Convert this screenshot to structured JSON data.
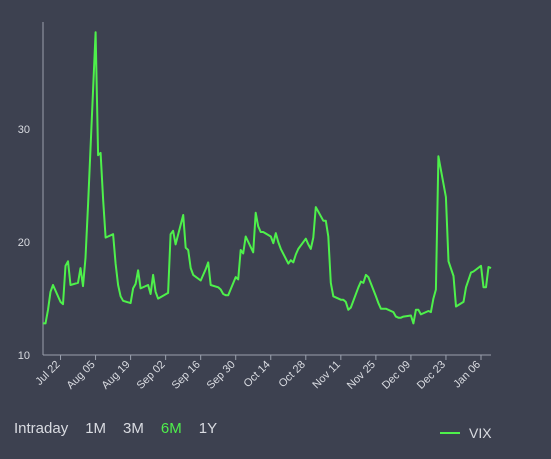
{
  "colors": {
    "background": "#3d4150",
    "line": "#4ef04b",
    "axis": "#9aa0ad",
    "text": "#d9dbe1",
    "active": "#4ef04b"
  },
  "range_buttons": [
    {
      "label": "Intraday",
      "active": false
    },
    {
      "label": "1M",
      "active": false
    },
    {
      "label": "3M",
      "active": false
    },
    {
      "label": "6M",
      "active": true
    },
    {
      "label": "1Y",
      "active": false
    }
  ],
  "chart_data": {
    "type": "line",
    "title": "",
    "xlabel": "",
    "ylabel": "",
    "ylim": [
      10,
      39.5
    ],
    "xlim": [
      "2024-07-15",
      "2025-01-10"
    ],
    "yticks": [
      10,
      20,
      30
    ],
    "xticks": [
      {
        "label": "Jul 22",
        "date": "2024-07-22"
      },
      {
        "label": "Aug 05",
        "date": "2024-08-05"
      },
      {
        "label": "Aug 19",
        "date": "2024-08-19"
      },
      {
        "label": "Sep 02",
        "date": "2024-09-02"
      },
      {
        "label": "Sep 16",
        "date": "2024-09-16"
      },
      {
        "label": "Sep 30",
        "date": "2024-09-30"
      },
      {
        "label": "Oct 14",
        "date": "2024-10-14"
      },
      {
        "label": "Oct 28",
        "date": "2024-10-28"
      },
      {
        "label": "Nov 11",
        "date": "2024-11-11"
      },
      {
        "label": "Nov 25",
        "date": "2024-11-25"
      },
      {
        "label": "Dec 09",
        "date": "2024-12-09"
      },
      {
        "label": "Dec 23",
        "date": "2024-12-23"
      },
      {
        "label": "Jan 06",
        "date": "2025-01-06"
      }
    ],
    "grid": false,
    "legend": "bottom-right",
    "series": [
      {
        "name": "VIX",
        "points": [
          [
            "2024-07-15",
            12.8
          ],
          [
            "2024-07-16",
            12.8
          ],
          [
            "2024-07-17",
            14.0
          ],
          [
            "2024-07-18",
            15.6
          ],
          [
            "2024-07-19",
            16.2
          ],
          [
            "2024-07-22",
            14.7
          ],
          [
            "2024-07-23",
            14.5
          ],
          [
            "2024-07-24",
            17.9
          ],
          [
            "2024-07-25",
            18.3
          ],
          [
            "2024-07-26",
            16.2
          ],
          [
            "2024-07-29",
            16.4
          ],
          [
            "2024-07-30",
            17.7
          ],
          [
            "2024-07-31",
            16.1
          ],
          [
            "2024-08-01",
            18.6
          ],
          [
            "2024-08-02",
            23.4
          ],
          [
            "2024-08-05",
            38.6
          ],
          [
            "2024-08-06",
            27.7
          ],
          [
            "2024-08-07",
            27.9
          ],
          [
            "2024-08-08",
            23.8
          ],
          [
            "2024-08-09",
            20.4
          ],
          [
            "2024-08-12",
            20.7
          ],
          [
            "2024-08-13",
            18.1
          ],
          [
            "2024-08-14",
            16.2
          ],
          [
            "2024-08-15",
            15.2
          ],
          [
            "2024-08-16",
            14.8
          ],
          [
            "2024-08-19",
            14.6
          ],
          [
            "2024-08-20",
            15.9
          ],
          [
            "2024-08-21",
            16.3
          ],
          [
            "2024-08-22",
            17.5
          ],
          [
            "2024-08-23",
            15.9
          ],
          [
            "2024-08-26",
            16.2
          ],
          [
            "2024-08-27",
            15.4
          ],
          [
            "2024-08-28",
            17.1
          ],
          [
            "2024-08-29",
            15.6
          ],
          [
            "2024-08-30",
            15.0
          ],
          [
            "2024-09-03",
            15.5
          ],
          [
            "2024-09-04",
            20.7
          ],
          [
            "2024-09-05",
            21.0
          ],
          [
            "2024-09-06",
            19.8
          ],
          [
            "2024-09-09",
            22.4
          ],
          [
            "2024-09-10",
            19.5
          ],
          [
            "2024-09-11",
            19.3
          ],
          [
            "2024-09-12",
            17.7
          ],
          [
            "2024-09-13",
            17.1
          ],
          [
            "2024-09-16",
            16.6
          ],
          [
            "2024-09-17",
            17.1
          ],
          [
            "2024-09-18",
            17.6
          ],
          [
            "2024-09-19",
            18.2
          ],
          [
            "2024-09-20",
            16.2
          ],
          [
            "2024-09-23",
            16.0
          ],
          [
            "2024-09-24",
            15.8
          ],
          [
            "2024-09-25",
            15.4
          ],
          [
            "2024-09-26",
            15.3
          ],
          [
            "2024-09-27",
            15.3
          ],
          [
            "2024-09-30",
            16.9
          ],
          [
            "2024-10-01",
            16.7
          ],
          [
            "2024-10-02",
            19.3
          ],
          [
            "2024-10-03",
            19.0
          ],
          [
            "2024-10-04",
            20.5
          ],
          [
            "2024-10-07",
            19.1
          ],
          [
            "2024-10-08",
            22.6
          ],
          [
            "2024-10-09",
            21.4
          ],
          [
            "2024-10-10",
            20.9
          ],
          [
            "2024-10-11",
            20.9
          ],
          [
            "2024-10-14",
            20.5
          ],
          [
            "2024-10-15",
            19.9
          ],
          [
            "2024-10-16",
            20.8
          ],
          [
            "2024-10-17",
            20.0
          ],
          [
            "2024-10-18",
            19.4
          ],
          [
            "2024-10-21",
            18.1
          ],
          [
            "2024-10-22",
            18.4
          ],
          [
            "2024-10-23",
            18.2
          ],
          [
            "2024-10-24",
            18.9
          ],
          [
            "2024-10-25",
            19.4
          ],
          [
            "2024-10-28",
            20.3
          ],
          [
            "2024-10-29",
            19.8
          ],
          [
            "2024-10-30",
            19.4
          ],
          [
            "2024-10-31",
            20.4
          ],
          [
            "2024-11-01",
            23.1
          ],
          [
            "2024-11-04",
            21.9
          ],
          [
            "2024-11-05",
            21.9
          ],
          [
            "2024-11-06",
            20.5
          ],
          [
            "2024-11-07",
            16.4
          ],
          [
            "2024-11-08",
            15.2
          ],
          [
            "2024-11-11",
            14.9
          ],
          [
            "2024-11-12",
            14.9
          ],
          [
            "2024-11-13",
            14.7
          ],
          [
            "2024-11-14",
            14.0
          ],
          [
            "2024-11-15",
            14.2
          ],
          [
            "2024-11-18",
            16.0
          ],
          [
            "2024-11-19",
            16.5
          ],
          [
            "2024-11-20",
            16.4
          ],
          [
            "2024-11-21",
            17.1
          ],
          [
            "2024-11-22",
            16.9
          ],
          [
            "2024-11-25",
            15.2
          ],
          [
            "2024-11-26",
            14.6
          ],
          [
            "2024-11-27",
            14.1
          ],
          [
            "2024-11-29",
            14.1
          ],
          [
            "2024-12-02",
            13.8
          ],
          [
            "2024-12-03",
            13.4
          ],
          [
            "2024-12-04",
            13.3
          ],
          [
            "2024-12-05",
            13.3
          ],
          [
            "2024-12-06",
            13.4
          ],
          [
            "2024-12-09",
            13.5
          ],
          [
            "2024-12-10",
            12.8
          ],
          [
            "2024-12-11",
            14.0
          ],
          [
            "2024-12-12",
            14.0
          ],
          [
            "2024-12-13",
            13.6
          ],
          [
            "2024-12-16",
            13.9
          ],
          [
            "2024-12-17",
            13.8
          ],
          [
            "2024-12-18",
            15.0
          ],
          [
            "2024-12-19",
            15.8
          ],
          [
            "2024-12-20",
            27.6
          ],
          [
            "2024-12-23",
            24.0
          ],
          [
            "2024-12-24",
            18.3
          ],
          [
            "2024-12-26",
            17.0
          ],
          [
            "2024-12-27",
            14.3
          ],
          [
            "2024-12-30",
            14.7
          ],
          [
            "2024-12-31",
            16.0
          ],
          [
            "2025-01-02",
            17.3
          ],
          [
            "2025-01-03",
            17.4
          ],
          [
            "2025-01-06",
            17.9
          ],
          [
            "2025-01-07",
            16.0
          ],
          [
            "2025-01-08",
            16.0
          ],
          [
            "2025-01-09",
            17.8
          ],
          [
            "2025-01-10",
            17.7
          ]
        ]
      }
    ]
  }
}
